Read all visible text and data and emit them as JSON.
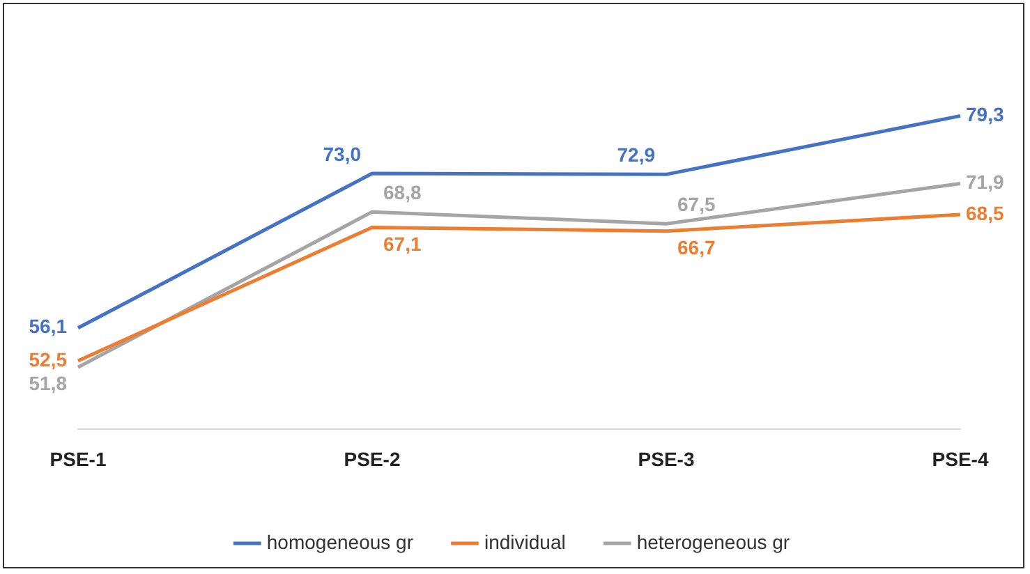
{
  "chart_data": {
    "type": "line",
    "categories": [
      "PSE-1",
      "PSE-2",
      "PSE-3",
      "PSE-4"
    ],
    "tick_labels": "x",
    "grid": false,
    "legend": "bottom",
    "marker": "none",
    "line_style": "solid",
    "series": [
      {
        "name": "homogeneous gr",
        "color": "#4472c4",
        "values": [
          56.1,
          73.0,
          72.9,
          79.3
        ],
        "value_labels": [
          "56,1",
          "73,0",
          "72,9",
          "79,3"
        ]
      },
      {
        "name": "individual",
        "color": "#ed7d31",
        "values": [
          52.5,
          67.1,
          66.7,
          68.5
        ],
        "value_labels": [
          "52,5",
          "67,1",
          "66,7",
          "68,5"
        ]
      },
      {
        "name": "heterogeneous gr",
        "color": "#a5a5a5",
        "values": [
          51.8,
          68.8,
          67.5,
          71.9
        ],
        "value_labels": [
          "51,8",
          "68,8",
          "67,5",
          "71,9"
        ]
      }
    ]
  }
}
